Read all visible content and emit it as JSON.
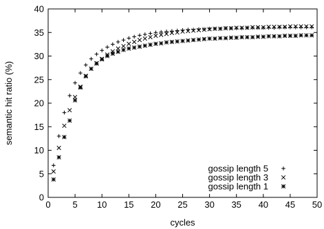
{
  "chart_data": {
    "type": "scatter",
    "xlabel": "cycles",
    "ylabel": "semantic hit ratio (%)",
    "xlim": [
      0,
      50
    ],
    "ylim": [
      0,
      40
    ],
    "xticks": [
      0,
      5,
      10,
      15,
      20,
      25,
      30,
      35,
      40,
      45,
      50
    ],
    "yticks": [
      0,
      5,
      10,
      15,
      20,
      25,
      30,
      35,
      40
    ],
    "grid": false,
    "legend": "bottom-right",
    "series": [
      {
        "name": "gossip length 5",
        "marker": "plus",
        "x": [
          1,
          2,
          3,
          4,
          5,
          6,
          7,
          8,
          9,
          10,
          11,
          12,
          13,
          14,
          15,
          16,
          17,
          18,
          19,
          20,
          21,
          22,
          23,
          24,
          25,
          26,
          27,
          28,
          29,
          30,
          31,
          32,
          33,
          34,
          35,
          36,
          37,
          38,
          39,
          40,
          41,
          42,
          43,
          44,
          45,
          46,
          47,
          48,
          49
        ],
        "values": [
          6.8,
          13.0,
          18.0,
          21.6,
          24.3,
          26.4,
          28.1,
          29.4,
          30.4,
          31.2,
          31.9,
          32.5,
          33.0,
          33.4,
          33.8,
          34.1,
          34.4,
          34.6,
          34.8,
          35.0,
          35.1,
          35.2,
          35.3,
          35.4,
          35.5,
          35.6,
          35.6,
          35.7,
          35.7,
          35.8,
          35.8,
          35.8,
          35.9,
          35.9,
          35.9,
          35.9,
          36.0,
          36.0,
          36.0,
          36.0,
          36.0,
          36.0,
          36.1,
          36.1,
          36.1,
          36.1,
          36.1,
          36.1,
          36.1
        ]
      },
      {
        "name": "gossip length 3",
        "marker": "cross",
        "x": [
          1,
          2,
          3,
          4,
          5,
          6,
          7,
          8,
          9,
          10,
          11,
          12,
          13,
          14,
          15,
          16,
          17,
          18,
          19,
          20,
          21,
          22,
          23,
          24,
          25,
          26,
          27,
          28,
          29,
          30,
          31,
          32,
          33,
          34,
          35,
          36,
          37,
          38,
          39,
          40,
          41,
          42,
          43,
          44,
          45,
          46,
          47,
          48,
          49
        ],
        "values": [
          5.5,
          10.5,
          15.2,
          18.5,
          21.3,
          23.5,
          25.8,
          27.3,
          28.5,
          29.4,
          30.3,
          31.0,
          31.6,
          32.1,
          32.6,
          33.0,
          33.4,
          33.7,
          34.0,
          34.3,
          34.5,
          34.7,
          34.9,
          35.0,
          35.2,
          35.3,
          35.4,
          35.5,
          35.6,
          35.7,
          35.8,
          35.8,
          35.9,
          35.9,
          36.0,
          36.0,
          36.0,
          36.1,
          36.1,
          36.1,
          36.2,
          36.2,
          36.2,
          36.2,
          36.3,
          36.3,
          36.3,
          36.3,
          36.3
        ]
      },
      {
        "name": "gossip length 1",
        "marker": "star",
        "x": [
          1,
          2,
          3,
          4,
          5,
          6,
          7,
          8,
          9,
          10,
          11,
          12,
          13,
          14,
          15,
          16,
          17,
          18,
          19,
          20,
          21,
          22,
          23,
          24,
          25,
          26,
          27,
          28,
          29,
          30,
          31,
          32,
          33,
          34,
          35,
          36,
          37,
          38,
          39,
          40,
          41,
          42,
          43,
          44,
          45,
          46,
          47,
          48,
          49
        ],
        "values": [
          3.8,
          8.5,
          12.8,
          16.3,
          20.6,
          23.3,
          25.7,
          27.3,
          28.4,
          29.3,
          30.0,
          30.5,
          30.9,
          31.3,
          31.6,
          31.8,
          32.0,
          32.2,
          32.4,
          32.6,
          32.7,
          32.9,
          33.0,
          33.1,
          33.2,
          33.3,
          33.4,
          33.5,
          33.6,
          33.7,
          33.7,
          33.8,
          33.8,
          33.9,
          33.9,
          34.0,
          34.0,
          34.0,
          34.1,
          34.1,
          34.2,
          34.2,
          34.2,
          34.3,
          34.3,
          34.3,
          34.4,
          34.4,
          34.4
        ]
      }
    ]
  }
}
